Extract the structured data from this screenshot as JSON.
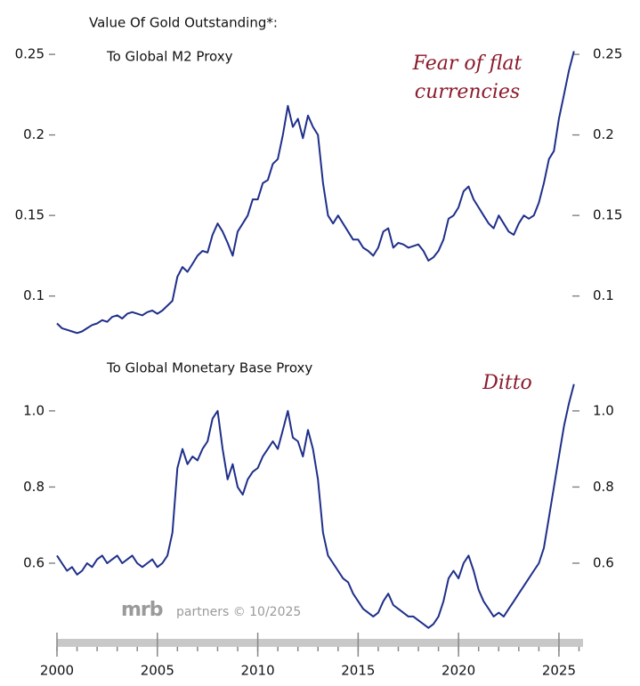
{
  "chart_data": [
    {
      "type": "line",
      "title": "Value Of Gold Outstanding*:",
      "subtitle": "To Global M2 Proxy",
      "annotation": [
        "Fear of flat",
        "currencies"
      ],
      "color": "#1f2f8a",
      "xlim": [
        2000,
        2026.2
      ],
      "ylim": [
        0.07,
        0.26
      ],
      "yticks": [
        0.1,
        0.15,
        0.2,
        0.25
      ],
      "x": [
        2000,
        2000.25,
        2000.5,
        2000.75,
        2001,
        2001.25,
        2001.5,
        2001.75,
        2002,
        2002.25,
        2002.5,
        2002.75,
        2003,
        2003.25,
        2003.5,
        2003.75,
        2004,
        2004.25,
        2004.5,
        2004.75,
        2005,
        2005.25,
        2005.5,
        2005.75,
        2006,
        2006.25,
        2006.5,
        2006.75,
        2007,
        2007.25,
        2007.5,
        2007.75,
        2008,
        2008.25,
        2008.5,
        2008.75,
        2009,
        2009.25,
        2009.5,
        2009.75,
        2010,
        2010.25,
        2010.5,
        2010.75,
        2011,
        2011.25,
        2011.5,
        2011.75,
        2012,
        2012.25,
        2012.5,
        2012.75,
        2013,
        2013.25,
        2013.5,
        2013.75,
        2014,
        2014.25,
        2014.5,
        2014.75,
        2015,
        2015.25,
        2015.5,
        2015.75,
        2016,
        2016.25,
        2016.5,
        2016.75,
        2017,
        2017.25,
        2017.5,
        2017.75,
        2018,
        2018.25,
        2018.5,
        2018.75,
        2019,
        2019.25,
        2019.5,
        2019.75,
        2020,
        2020.25,
        2020.5,
        2020.75,
        2021,
        2021.25,
        2021.5,
        2021.75,
        2022,
        2022.25,
        2022.5,
        2022.75,
        2023,
        2023.25,
        2023.5,
        2023.75,
        2024,
        2024.25,
        2024.5,
        2024.75,
        2025,
        2025.25,
        2025.5,
        2025.75
      ],
      "values": [
        0.083,
        0.08,
        0.079,
        0.078,
        0.077,
        0.078,
        0.08,
        0.082,
        0.083,
        0.085,
        0.084,
        0.087,
        0.088,
        0.086,
        0.089,
        0.09,
        0.089,
        0.088,
        0.09,
        0.091,
        0.089,
        0.091,
        0.094,
        0.097,
        0.112,
        0.118,
        0.115,
        0.12,
        0.125,
        0.128,
        0.127,
        0.138,
        0.145,
        0.14,
        0.133,
        0.125,
        0.14,
        0.145,
        0.15,
        0.16,
        0.16,
        0.17,
        0.172,
        0.182,
        0.185,
        0.2,
        0.218,
        0.205,
        0.21,
        0.198,
        0.212,
        0.205,
        0.2,
        0.17,
        0.15,
        0.145,
        0.15,
        0.145,
        0.14,
        0.135,
        0.135,
        0.13,
        0.128,
        0.125,
        0.13,
        0.14,
        0.142,
        0.13,
        0.133,
        0.132,
        0.13,
        0.131,
        0.132,
        0.128,
        0.122,
        0.124,
        0.128,
        0.135,
        0.148,
        0.15,
        0.155,
        0.165,
        0.168,
        0.16,
        0.155,
        0.15,
        0.145,
        0.142,
        0.15,
        0.145,
        0.14,
        0.138,
        0.145,
        0.15,
        0.148,
        0.15,
        0.158,
        0.17,
        0.185,
        0.19,
        0.21,
        0.225,
        0.24,
        0.252
      ]
    },
    {
      "type": "line",
      "subtitle": "To Global Monetary Base Proxy",
      "annotation": [
        "Ditto"
      ],
      "color": "#1f2f8a",
      "source": {
        "logo": "mrb",
        "text": "partners © 10/2025"
      },
      "xlim": [
        2000,
        2026.2
      ],
      "ylim": [
        0.42,
        1.1
      ],
      "yticks": [
        {
          "value": 0.6,
          "label": "0.6"
        },
        {
          "value": 0.8,
          "label": "0.8"
        },
        {
          "value": 1.0,
          "label": "1.0"
        }
      ],
      "xticks": [
        2000,
        2005,
        2010,
        2015,
        2020,
        2025
      ],
      "x": [
        2000,
        2000.25,
        2000.5,
        2000.75,
        2001,
        2001.25,
        2001.5,
        2001.75,
        2002,
        2002.25,
        2002.5,
        2002.75,
        2003,
        2003.25,
        2003.5,
        2003.75,
        2004,
        2004.25,
        2004.5,
        2004.75,
        2005,
        2005.25,
        2005.5,
        2005.75,
        2006,
        2006.25,
        2006.5,
        2006.75,
        2007,
        2007.25,
        2007.5,
        2007.75,
        2008,
        2008.25,
        2008.5,
        2008.75,
        2009,
        2009.25,
        2009.5,
        2009.75,
        2010,
        2010.25,
        2010.5,
        2010.75,
        2011,
        2011.25,
        2011.5,
        2011.75,
        2012,
        2012.25,
        2012.5,
        2012.75,
        2013,
        2013.25,
        2013.5,
        2013.75,
        2014,
        2014.25,
        2014.5,
        2014.75,
        2015,
        2015.25,
        2015.5,
        2015.75,
        2016,
        2016.25,
        2016.5,
        2016.75,
        2017,
        2017.25,
        2017.5,
        2017.75,
        2018,
        2018.25,
        2018.5,
        2018.75,
        2019,
        2019.25,
        2019.5,
        2019.75,
        2020,
        2020.25,
        2020.5,
        2020.75,
        2021,
        2021.25,
        2021.5,
        2021.75,
        2022,
        2022.25,
        2022.5,
        2022.75,
        2023,
        2023.25,
        2023.5,
        2023.75,
        2024,
        2024.25,
        2024.5,
        2024.75,
        2025,
        2025.25,
        2025.5,
        2025.75
      ],
      "values": [
        0.62,
        0.6,
        0.58,
        0.59,
        0.57,
        0.58,
        0.6,
        0.59,
        0.61,
        0.62,
        0.6,
        0.61,
        0.62,
        0.6,
        0.61,
        0.62,
        0.6,
        0.59,
        0.6,
        0.61,
        0.59,
        0.6,
        0.62,
        0.68,
        0.85,
        0.9,
        0.86,
        0.88,
        0.87,
        0.9,
        0.92,
        0.98,
        1.0,
        0.9,
        0.82,
        0.86,
        0.8,
        0.78,
        0.82,
        0.84,
        0.85,
        0.88,
        0.9,
        0.92,
        0.9,
        0.95,
        1.0,
        0.93,
        0.92,
        0.88,
        0.95,
        0.9,
        0.82,
        0.68,
        0.62,
        0.6,
        0.58,
        0.56,
        0.55,
        0.52,
        0.5,
        0.48,
        0.47,
        0.46,
        0.47,
        0.5,
        0.52,
        0.49,
        0.48,
        0.47,
        0.46,
        0.46,
        0.45,
        0.44,
        0.43,
        0.44,
        0.46,
        0.5,
        0.56,
        0.58,
        0.56,
        0.6,
        0.62,
        0.58,
        0.53,
        0.5,
        0.48,
        0.46,
        0.47,
        0.46,
        0.48,
        0.5,
        0.52,
        0.54,
        0.56,
        0.58,
        0.6,
        0.64,
        0.72,
        0.8,
        0.88,
        0.96,
        1.02,
        1.07
      ]
    }
  ]
}
